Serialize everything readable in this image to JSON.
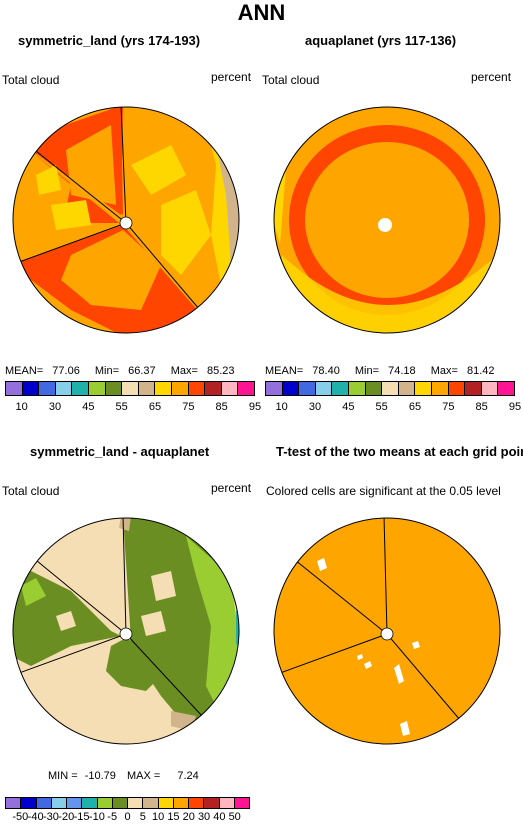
{
  "title": "ANN",
  "panels": [
    {
      "title": "symmetric_land (yrs 174-193)",
      "left_label": "Total cloud",
      "right_label": "percent",
      "stats": {
        "mean": "77.06",
        "min": "66.37",
        "max": "85.23"
      },
      "stat_labels": {
        "mean": "MEAN=",
        "min": "Min=",
        "max": "Max="
      }
    },
    {
      "title": "aquaplanet (yrs 117-136)",
      "left_label": "Total cloud",
      "right_label": "percent",
      "stats": {
        "mean": "78.40",
        "min": "74.18",
        "max": "81.42"
      },
      "stat_labels": {
        "mean": "MEAN=",
        "min": "Min=",
        "max": "Max="
      }
    },
    {
      "title": "symmetric_land - aquaplanet",
      "left_label": "Total cloud",
      "right_label": "percent",
      "stats": {
        "min": "-10.79",
        "max": "7.24"
      },
      "stat_labels": {
        "min": "MIN =",
        "max": "MAX ="
      }
    },
    {
      "title": "T-test of the two means at each grid point",
      "subtitle": "Colored cells are significant at the 0.05 level"
    }
  ],
  "colorbar_abs": {
    "colors": [
      "#9370db",
      "#0000cd",
      "#4169e1",
      "#87ceeb",
      "#20b2aa",
      "#9acd32",
      "#6b8e23",
      "#f5deb3",
      "#d2b48c",
      "#ffd700",
      "#ffa500",
      "#ff4500",
      "#b22222",
      "#ffb6c1",
      "#ff1493"
    ],
    "labels": [
      "10",
      "30",
      "45",
      "55",
      "65",
      "75",
      "85",
      "95"
    ]
  },
  "colorbar_diff": {
    "colors": [
      "#9370db",
      "#0000cd",
      "#4169e1",
      "#87ceeb",
      "#6495ed",
      "#20b2aa",
      "#9acd32",
      "#6b8e23",
      "#f5deb3",
      "#d2b48c",
      "#ffd700",
      "#ffa500",
      "#ff4500",
      "#b22222",
      "#ffb6c1",
      "#ff1493"
    ],
    "labels": [
      "-50",
      "-40",
      "-30",
      "-20",
      "-15",
      "-10",
      "-5",
      "0",
      "5",
      "10",
      "15",
      "20",
      "30",
      "40",
      "50"
    ]
  }
}
